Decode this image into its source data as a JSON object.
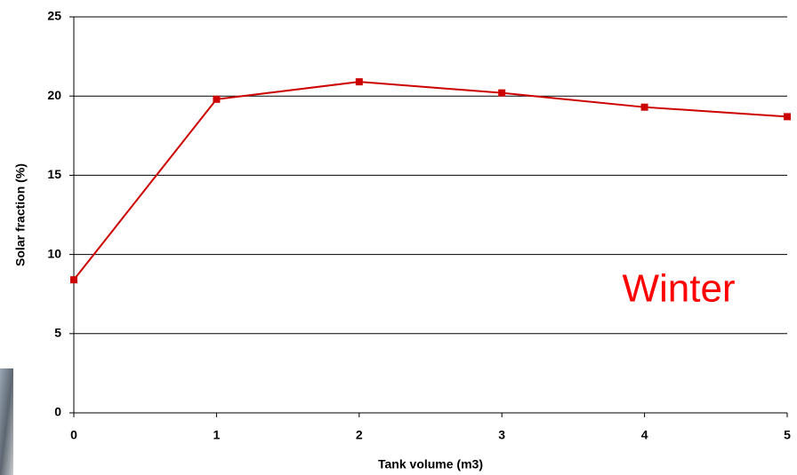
{
  "chart_data": {
    "type": "line",
    "x": [
      0,
      1,
      2,
      3,
      4,
      5
    ],
    "values": [
      8.4,
      19.8,
      20.9,
      20.2,
      19.3,
      18.7
    ],
    "color": "#cc0000",
    "xlim": [
      0,
      5
    ],
    "xticks": [
      0,
      1,
      2,
      3,
      4,
      5
    ],
    "ylim": [
      0,
      25
    ],
    "yticks": [
      0,
      5,
      10,
      15,
      20,
      25
    ],
    "x_label": "Tank volume (m3)",
    "y_label": "Solar fraction (%)",
    "annotation": "Winter",
    "grid": true
  }
}
